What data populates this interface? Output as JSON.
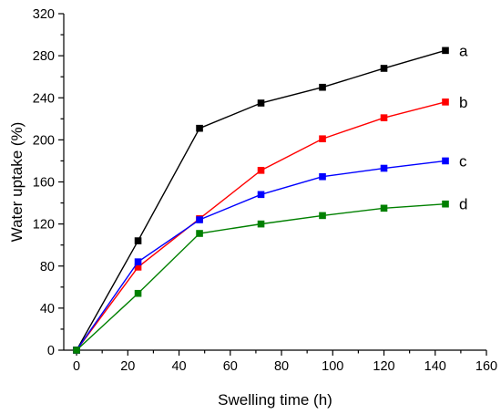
{
  "chart_data": {
    "type": "line",
    "xlabel": "Swelling time (h)",
    "ylabel": "Water uptake (%)",
    "xlim": [
      -5,
      160
    ],
    "ylim": [
      0,
      320
    ],
    "xticks": [
      0,
      20,
      40,
      60,
      80,
      100,
      120,
      140,
      160
    ],
    "yticks": [
      0,
      40,
      80,
      120,
      160,
      200,
      240,
      280,
      320
    ],
    "grid": false,
    "marker": "square",
    "x": [
      0,
      24,
      48,
      72,
      96,
      120,
      144
    ],
    "series": [
      {
        "name": "a",
        "color": "#000000",
        "values": [
          0,
          104,
          211,
          235,
          250,
          268,
          285
        ]
      },
      {
        "name": "b",
        "color": "#ff0000",
        "values": [
          0,
          79,
          125,
          171,
          201,
          221,
          236
        ]
      },
      {
        "name": "c",
        "color": "#0000ff",
        "values": [
          0,
          84,
          124,
          148,
          165,
          173,
          180
        ]
      },
      {
        "name": "d",
        "color": "#008000",
        "values": [
          0,
          54,
          111,
          120,
          128,
          135,
          139
        ]
      }
    ]
  }
}
